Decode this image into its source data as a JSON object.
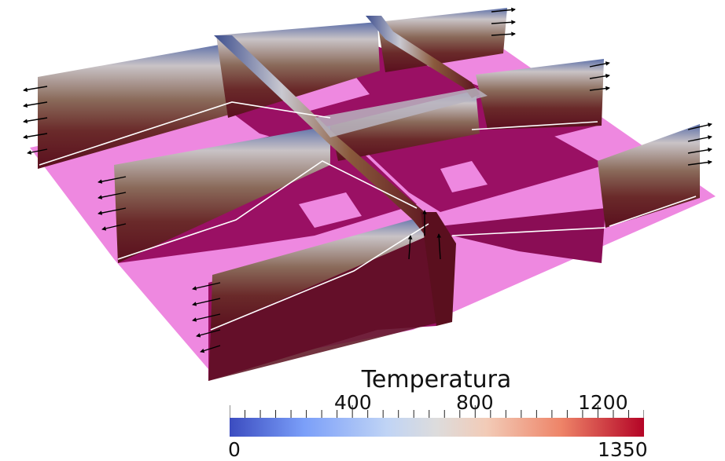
{
  "viewport": {
    "colors": {
      "background": "#ffffff",
      "plane": "#ee88e0",
      "slab_bottom": "#7a0f3c",
      "slab_top": "#3b4d8c",
      "arrow": "#000000"
    }
  },
  "colorbar": {
    "title": "Temperatura",
    "min_label": "0",
    "max_label": "1350",
    "tick_labels": [
      "400",
      "800",
      "1200"
    ],
    "range": [
      0,
      1350
    ],
    "colormap": "cool-to-warm"
  }
}
